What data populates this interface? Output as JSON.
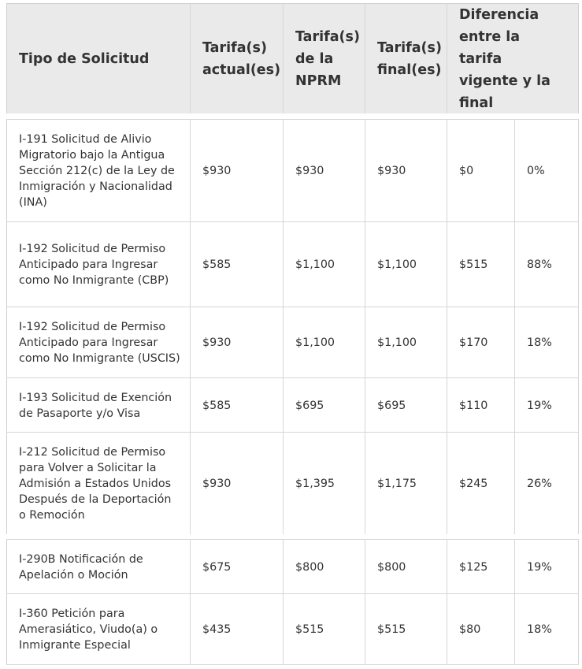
{
  "header": {
    "col_type": "Tipo de Solicitud",
    "col_current": "Tarifa(s) actual(es)",
    "col_nprm": "Tarifa(s) de la NPRM",
    "col_final": "Tarifa(s) final(es)",
    "col_diff": "Diferencia entre la tarifa vigente y la final"
  },
  "rows": [
    {
      "type": "I-191 Solicitud de Alivio Migratorio bajo la Antigua Sección 212(c) de la Ley de Inmigración y Nacionalidad (INA)",
      "current": "$930",
      "nprm": "$930",
      "final": "$930",
      "diff": "$0",
      "pct": "0%"
    },
    {
      "type": "I-192 Solicitud de Permiso Anticipado para Ingresar como No Inmigrante (CBP)",
      "current": "$585",
      "nprm": "$1,100",
      "final": "$1,100",
      "diff": "$515",
      "pct": "88%"
    },
    {
      "type": "I-192 Solicitud de Permiso Anticipado para Ingresar como No Inmigrante (USCIS)",
      "current": "$930",
      "nprm": "$1,100",
      "final": "$1,100",
      "diff": "$170",
      "pct": "18%"
    },
    {
      "type": "I-193 Solicitud de Exención de Pasaporte y/o Visa",
      "current": "$585",
      "nprm": "$695",
      "final": "$695",
      "diff": "$110",
      "pct": "19%"
    },
    {
      "type": "I-212 Solicitud de Permiso para Volver a Solicitar la Admisión a Estados Unidos Después de la Deportación o Remoción",
      "current": "$930",
      "nprm": "$1,395",
      "final": "$1,175",
      "diff": "$245",
      "pct": "26%"
    },
    {
      "type": "I-290B Notificación  de Apelación o Moción",
      "current": "$675",
      "nprm": "$800",
      "final": "$800",
      "diff": "$125",
      "pct": "19%"
    },
    {
      "type": "I-360 Petición para Amerasiático, Viudo(a) o Inmigrante Especial",
      "current": "$435",
      "nprm": "$515",
      "final": "$515",
      "diff": "$80",
      "pct": "18%"
    }
  ]
}
